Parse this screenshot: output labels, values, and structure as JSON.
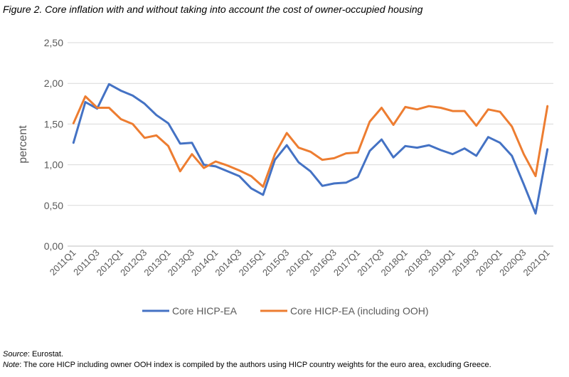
{
  "title": "Figure 2. Core inflation with and without taking into account the cost of owner-occupied housing",
  "footnotes": {
    "source_label": "Source",
    "source_text": ": Eurostat.",
    "note_label": "Note",
    "note_text": ": The core HICP including owner OOH index is compiled by the authors using HICP country weights for the euro area, excluding Greece."
  },
  "chart_data": {
    "type": "line",
    "title": "Figure 2. Core inflation with and without taking into account the cost of owner-occupied housing",
    "xlabel": "",
    "ylabel": "percent",
    "ylim": [
      0,
      2.5
    ],
    "yticks": [
      "0,00",
      "0,50",
      "1,00",
      "1,50",
      "2,00",
      "2,50"
    ],
    "grid": true,
    "legend": "bottom",
    "x": [
      "2011Q1",
      "2011Q2",
      "2011Q3",
      "2011Q4",
      "2012Q1",
      "2012Q2",
      "2012Q3",
      "2012Q4",
      "2013Q1",
      "2013Q2",
      "2013Q3",
      "2013Q4",
      "2014Q1",
      "2014Q2",
      "2014Q3",
      "2014Q4",
      "2015Q1",
      "2015Q2",
      "2015Q3",
      "2015Q4",
      "2016Q1",
      "2016Q2",
      "2016Q3",
      "2016Q4",
      "2017Q1",
      "2017Q2",
      "2017Q3",
      "2017Q4",
      "2018Q1",
      "2018Q2",
      "2018Q3",
      "2018Q4",
      "2019Q1",
      "2019Q2",
      "2019Q3",
      "2019Q4",
      "2020Q1",
      "2020Q2",
      "2020Q3",
      "2020Q4",
      "2021Q1"
    ],
    "x_tick_labels": [
      "2011Q1",
      "2011Q3",
      "2012Q1",
      "2012Q3",
      "2013Q1",
      "2013Q3",
      "2014Q1",
      "2014Q3",
      "2015Q1",
      "2015Q3",
      "2016Q1",
      "2016Q3",
      "2017Q1",
      "2017Q3",
      "2018Q1",
      "2018Q3",
      "2019Q1",
      "2019Q3",
      "2020Q1",
      "2020Q3",
      "2021Q1"
    ],
    "series": [
      {
        "name": "Core HICP-EA",
        "color": "#4472C4",
        "values": [
          1.27,
          1.77,
          1.69,
          1.99,
          1.91,
          1.85,
          1.75,
          1.61,
          1.51,
          1.26,
          1.27,
          1.0,
          0.98,
          0.92,
          0.86,
          0.71,
          0.63,
          1.06,
          1.24,
          1.03,
          0.92,
          0.74,
          0.77,
          0.78,
          0.85,
          1.17,
          1.31,
          1.09,
          1.23,
          1.21,
          1.24,
          1.18,
          1.13,
          1.2,
          1.11,
          1.34,
          1.27,
          1.11,
          0.76,
          0.4,
          1.19
        ]
      },
      {
        "name": "Core HICP-EA (including OOH)",
        "color": "#ED7D31",
        "values": [
          1.51,
          1.84,
          1.7,
          1.7,
          1.56,
          1.5,
          1.33,
          1.36,
          1.23,
          0.92,
          1.13,
          0.96,
          1.04,
          0.99,
          0.93,
          0.86,
          0.73,
          1.13,
          1.39,
          1.21,
          1.16,
          1.06,
          1.08,
          1.14,
          1.15,
          1.53,
          1.7,
          1.49,
          1.71,
          1.68,
          1.72,
          1.7,
          1.66,
          1.66,
          1.48,
          1.68,
          1.65,
          1.47,
          1.13,
          0.86,
          1.72
        ]
      }
    ]
  }
}
